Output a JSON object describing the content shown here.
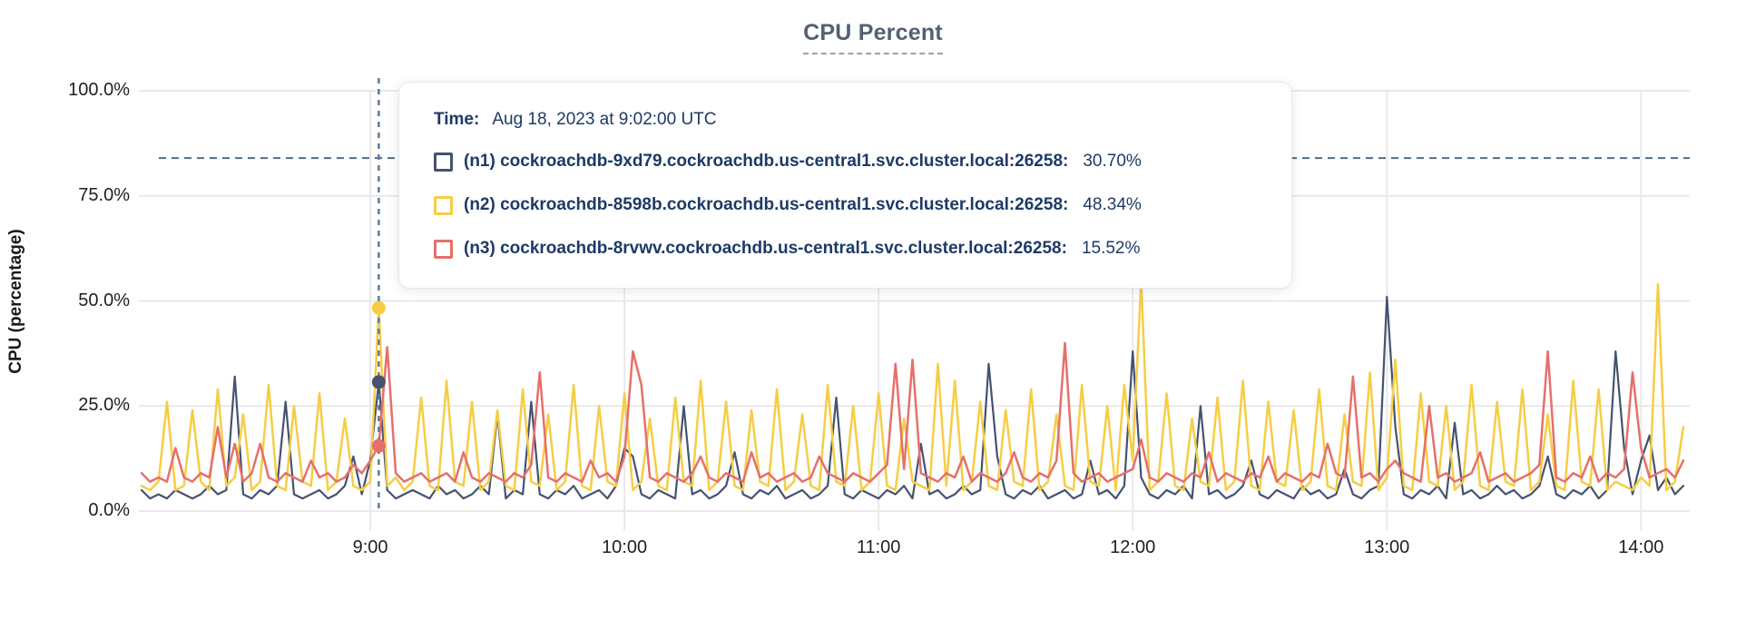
{
  "title": "CPU Percent",
  "ylabel": "CPU (percentage)",
  "colors": {
    "grid": "#e9e9e9",
    "reference_line": "#4f6d89",
    "hover_line": "#5e7b95",
    "text_navy": "#1d3a66",
    "title": "#566074",
    "tick_text": "#1f1f1f",
    "n1": "#44536f",
    "n2": "#f6cd45",
    "n3": "#e5706b"
  },
  "tooltip": {
    "time_label": "Time:",
    "time_value": "Aug 18, 2023 at 9:02:00 UTC",
    "rows": [
      {
        "label": "(n1) cockroachdb-9xd79.cockroachdb.us-central1.svc.cluster.local:26258:",
        "value": "30.70%",
        "color": "#44536f"
      },
      {
        "label": "(n2) cockroachdb-8598b.cockroachdb.us-central1.svc.cluster.local:26258:",
        "value": "48.34%",
        "color": "#f6cd45"
      },
      {
        "label": "(n3) cockroachdb-8rvwv.cockroachdb.us-central1.svc.cluster.local:26258:",
        "value": "15.52%",
        "color": "#e5706b"
      }
    ]
  },
  "chart_data": {
    "type": "line",
    "title": "CPU Percent",
    "xlabel": "",
    "ylabel": "CPU (percentage)",
    "ylim": [
      0,
      100
    ],
    "grid": true,
    "legend_position": "tooltip",
    "y_tick_values": [
      0,
      25,
      50,
      75,
      100
    ],
    "y_tick_labels": [
      "0.0%",
      "25.0%",
      "50.0%",
      "75.0%",
      "100.0%"
    ],
    "x_tick_labels": [
      "9:00",
      "10:00",
      "11:00",
      "12:00",
      "13:00",
      "14:00"
    ],
    "x_tick_minutes": [
      540,
      600,
      660,
      720,
      780,
      840
    ],
    "x_start_minutes": 486,
    "x_end_minutes": 850,
    "x_step_minutes": 2,
    "reference_line_percent": 84,
    "hover": {
      "index": 28,
      "time": "9:02:00",
      "points": [
        {
          "series": 0,
          "value": 30.7
        },
        {
          "series": 1,
          "value": 48.34
        },
        {
          "series": 2,
          "value": 15.52
        }
      ]
    },
    "series": [
      {
        "name": "(n1) cockroachdb-9xd79.cockroachdb.us-central1.svc.cluster.local:26258",
        "color": "#44536f",
        "width": 2.2,
        "values": [
          5,
          3,
          4,
          3,
          5,
          4,
          3,
          4,
          6,
          4,
          5,
          32,
          4,
          3,
          5,
          4,
          6,
          26,
          4,
          3,
          4,
          5,
          3,
          4,
          6,
          13,
          4,
          12,
          30.7,
          5,
          3,
          4,
          5,
          4,
          3,
          6,
          4,
          5,
          3,
          4,
          6,
          4,
          23,
          3,
          5,
          4,
          26,
          4,
          3,
          5,
          4,
          6,
          3,
          4,
          5,
          3,
          6,
          15,
          13,
          4,
          3,
          5,
          4,
          3,
          25,
          4,
          5,
          3,
          4,
          6,
          14,
          4,
          3,
          5,
          4,
          6,
          3,
          4,
          5,
          3,
          4,
          6,
          27,
          4,
          3,
          5,
          4,
          3,
          5,
          4,
          6,
          3,
          16,
          4,
          5,
          3,
          4,
          6,
          4,
          5,
          35,
          13,
          4,
          3,
          5,
          4,
          6,
          3,
          4,
          5,
          3,
          4,
          12,
          4,
          5,
          3,
          6,
          38,
          8,
          4,
          3,
          5,
          4,
          6,
          3,
          25,
          4,
          5,
          3,
          4,
          6,
          12,
          4,
          3,
          5,
          4,
          3,
          6,
          4,
          5,
          3,
          4,
          10,
          4,
          3,
          5,
          6,
          51,
          20,
          4,
          3,
          5,
          4,
          6,
          3,
          21,
          4,
          5,
          3,
          4,
          6,
          4,
          5,
          3,
          4,
          6,
          13,
          4,
          3,
          5,
          4,
          6,
          3,
          5,
          38,
          15,
          4,
          12,
          18,
          5,
          8,
          4,
          6
        ]
      },
      {
        "name": "(n2) cockroachdb-8598b.cockroachdb.us-central1.svc.cluster.local:26258",
        "color": "#f6cd45",
        "width": 2.5,
        "values": [
          6,
          5,
          7,
          26,
          5,
          6,
          24,
          7,
          5,
          29,
          6,
          8,
          23,
          5,
          7,
          30,
          6,
          5,
          25,
          7,
          6,
          28,
          5,
          7,
          22,
          6,
          5,
          7,
          48.34,
          6,
          8,
          5,
          7,
          27,
          6,
          5,
          31,
          7,
          6,
          26,
          5,
          7,
          24,
          6,
          5,
          29,
          7,
          6,
          23,
          5,
          7,
          30,
          6,
          5,
          25,
          7,
          6,
          28,
          5,
          7,
          22,
          6,
          5,
          27,
          7,
          6,
          31,
          5,
          7,
          26,
          6,
          5,
          24,
          7,
          6,
          29,
          5,
          7,
          23,
          6,
          5,
          30,
          7,
          6,
          25,
          5,
          7,
          28,
          6,
          5,
          22,
          7,
          6,
          5,
          35,
          6,
          31,
          5,
          7,
          26,
          6,
          5,
          24,
          7,
          6,
          29,
          5,
          7,
          23,
          6,
          5,
          30,
          7,
          6,
          25,
          5,
          30,
          12,
          55,
          5,
          7,
          28,
          6,
          5,
          22,
          7,
          6,
          27,
          5,
          7,
          31,
          6,
          5,
          26,
          7,
          6,
          24,
          5,
          7,
          29,
          6,
          5,
          23,
          7,
          6,
          33,
          5,
          8,
          36,
          6,
          5,
          28,
          7,
          6,
          25,
          5,
          7,
          30,
          6,
          5,
          26,
          7,
          6,
          29,
          5,
          7,
          23,
          6,
          5,
          31,
          7,
          6,
          29,
          5,
          7,
          6,
          5,
          8,
          6,
          54,
          5,
          7,
          20
        ]
      },
      {
        "name": "(n3) cockroachdb-8rvwv.cockroachdb.us-central1.svc.cluster.local:26258",
        "color": "#e5706b",
        "width": 2.5,
        "values": [
          9,
          7,
          8,
          7,
          15,
          8,
          7,
          9,
          8,
          20,
          8,
          16,
          7,
          9,
          16,
          8,
          7,
          9,
          8,
          7,
          12,
          8,
          9,
          7,
          8,
          11,
          9,
          12,
          15.52,
          39,
          9,
          7,
          8,
          9,
          7,
          8,
          9,
          7,
          14,
          8,
          7,
          9,
          8,
          7,
          9,
          8,
          11,
          33,
          8,
          7,
          9,
          8,
          7,
          12,
          8,
          9,
          7,
          13,
          38,
          30,
          8,
          7,
          9,
          8,
          7,
          9,
          13,
          8,
          7,
          9,
          8,
          7,
          14,
          8,
          9,
          7,
          8,
          9,
          7,
          8,
          13,
          9,
          8,
          7,
          9,
          8,
          7,
          9,
          11,
          35,
          10,
          36,
          9,
          8,
          7,
          9,
          8,
          13,
          7,
          9,
          8,
          7,
          9,
          14,
          8,
          7,
          9,
          8,
          12,
          40,
          9,
          7,
          8,
          9,
          7,
          8,
          9,
          10,
          17,
          8,
          7,
          9,
          8,
          7,
          9,
          8,
          14,
          7,
          9,
          8,
          7,
          9,
          8,
          13,
          7,
          9,
          8,
          7,
          9,
          8,
          16,
          9,
          8,
          32,
          8,
          9,
          7,
          10,
          12,
          9,
          8,
          7,
          25,
          8,
          9,
          7,
          8,
          9,
          14,
          7,
          8,
          9,
          7,
          8,
          9,
          11,
          38,
          8,
          7,
          9,
          8,
          13,
          7,
          9,
          8,
          10,
          33,
          15,
          8,
          9,
          10,
          8,
          12
        ]
      }
    ]
  }
}
